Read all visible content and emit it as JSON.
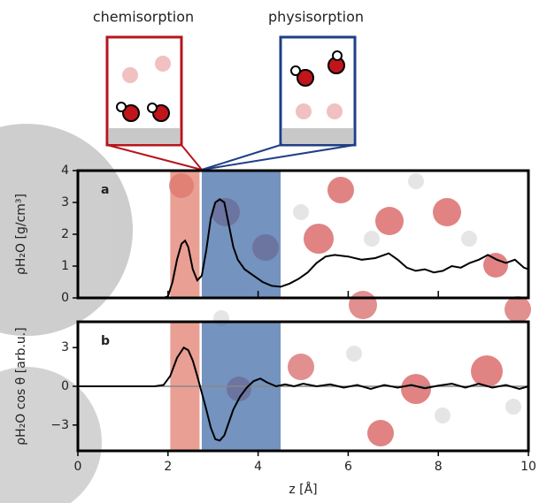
{
  "annotations": [
    {
      "text": "chemisorption",
      "color": "#c0151b"
    },
    {
      "text": "physisorption",
      "color": "#1f3f86"
    }
  ],
  "chart_data": [
    {
      "type": "line",
      "panel_label": "a",
      "ylabel": "ρH₂O [g/cm³]",
      "xlim": [
        0,
        10
      ],
      "xticks": [
        0,
        2,
        4,
        6,
        8,
        10
      ],
      "ylim": [
        0,
        4
      ],
      "yticks": [
        0,
        1,
        2,
        3,
        4
      ],
      "spans": [
        {
          "xlim": [
            2.05,
            2.7
          ],
          "color": "#e07a6a"
        },
        {
          "xlim": [
            2.75,
            4.5
          ],
          "color": "#3f6aa6"
        }
      ],
      "x": [
        0,
        1.9,
        2.0,
        2.1,
        2.2,
        2.3,
        2.38,
        2.45,
        2.55,
        2.65,
        2.75,
        2.85,
        2.95,
        3.05,
        3.15,
        3.25,
        3.35,
        3.45,
        3.55,
        3.7,
        3.9,
        4.1,
        4.3,
        4.5,
        4.7,
        4.9,
        5.1,
        5.3,
        5.5,
        5.7,
        6.0,
        6.3,
        6.6,
        6.9,
        7.1,
        7.3,
        7.5,
        7.7,
        7.9,
        8.1,
        8.3,
        8.5,
        8.7,
        8.9,
        9.1,
        9.3,
        9.5,
        9.7,
        9.9,
        10
      ],
      "series": [
        {
          "color": "#000000",
          "values": [
            0,
            0,
            0.05,
            0.5,
            1.2,
            1.7,
            1.8,
            1.6,
            0.9,
            0.55,
            0.7,
            1.5,
            2.5,
            3.0,
            3.1,
            3.0,
            2.3,
            1.6,
            1.2,
            0.9,
            0.7,
            0.5,
            0.38,
            0.35,
            0.45,
            0.6,
            0.8,
            1.1,
            1.3,
            1.35,
            1.3,
            1.2,
            1.25,
            1.4,
            1.2,
            0.95,
            0.85,
            0.9,
            0.8,
            0.85,
            1.0,
            0.95,
            1.1,
            1.2,
            1.35,
            1.2,
            1.1,
            1.2,
            0.95,
            0.9
          ]
        }
      ]
    },
    {
      "type": "line",
      "panel_label": "b",
      "ylabel": "ρH₂O cos θ [arb.u.]",
      "xlabel": "z [Å]",
      "xlim": [
        0,
        10
      ],
      "xticks": [
        0,
        2,
        4,
        6,
        8,
        10
      ],
      "ylim": [
        -5,
        5
      ],
      "yticks": [
        {
          "value": -3,
          "label": "−3"
        },
        0,
        3
      ],
      "spans": [
        {
          "xlim": [
            2.05,
            2.7
          ],
          "color": "#e07a6a"
        },
        {
          "xlim": [
            2.75,
            4.5
          ],
          "color": "#3f6aa6"
        }
      ],
      "x": [
        0,
        1.7,
        1.9,
        2.05,
        2.2,
        2.35,
        2.45,
        2.55,
        2.65,
        2.75,
        2.85,
        2.95,
        3.05,
        3.15,
        3.25,
        3.35,
        3.45,
        3.6,
        3.75,
        3.9,
        4.05,
        4.2,
        4.4,
        4.6,
        4.8,
        5.0,
        5.3,
        5.6,
        5.9,
        6.2,
        6.5,
        6.8,
        7.1,
        7.4,
        7.7,
        8.0,
        8.3,
        8.6,
        8.9,
        9.2,
        9.5,
        9.8,
        10
      ],
      "series": [
        {
          "color": "#000000",
          "values": [
            0,
            0,
            0.1,
            0.8,
            2.2,
            3.0,
            2.8,
            2.0,
            0.8,
            -0.5,
            -1.8,
            -3.2,
            -4.1,
            -4.2,
            -3.8,
            -2.8,
            -1.8,
            -0.8,
            -0.1,
            0.4,
            0.6,
            0.3,
            0.0,
            0.15,
            0.0,
            0.2,
            0.0,
            0.15,
            -0.1,
            0.1,
            -0.2,
            0.1,
            -0.1,
            0.1,
            -0.15,
            0.05,
            0.2,
            -0.1,
            0.2,
            -0.1,
            0.1,
            -0.2,
            0
          ]
        }
      ]
    }
  ]
}
